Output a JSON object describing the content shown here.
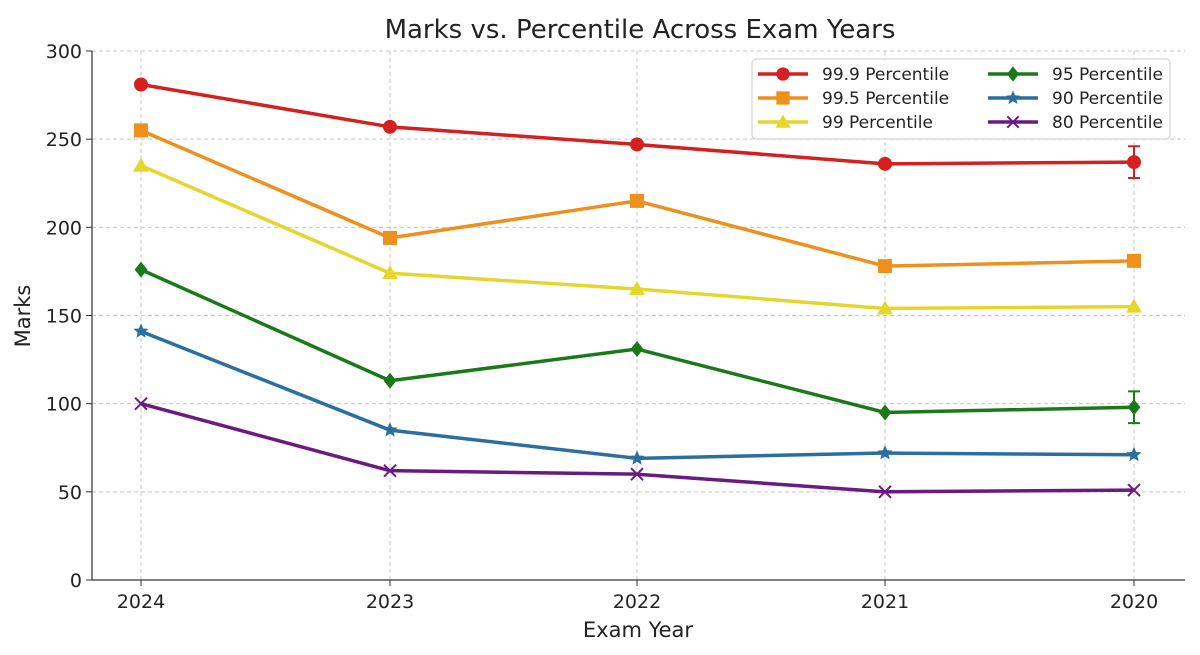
{
  "chart_data": {
    "type": "line",
    "title": "Marks vs. Percentile Across Exam Years",
    "xlabel": "Exam Year",
    "ylabel": "Marks",
    "categories": [
      "2024",
      "2023",
      "2022",
      "2021",
      "2020"
    ],
    "ylim": [
      0,
      300
    ],
    "yticks": [
      0,
      50,
      100,
      150,
      200,
      250,
      300
    ],
    "grid": true,
    "legend": "top-right",
    "series": [
      {
        "name": "99.9 Percentile",
        "color": "#d62020",
        "marker": "circle",
        "values": [
          281,
          257,
          247,
          236,
          237
        ],
        "error_2020": 9
      },
      {
        "name": "99.5 Percentile",
        "color": "#f0901c",
        "marker": "square",
        "values": [
          255,
          194,
          215,
          178,
          181
        ]
      },
      {
        "name": "99 Percentile",
        "color": "#e6d62c",
        "marker": "triangle",
        "values": [
          235,
          174,
          165,
          154,
          155
        ]
      },
      {
        "name": "95 Percentile",
        "color": "#1a7a1a",
        "marker": "diamond",
        "values": [
          176,
          113,
          131,
          95,
          98
        ],
        "error_2020": 9
      },
      {
        "name": "90 Percentile",
        "color": "#2b6ea0",
        "marker": "star",
        "values": [
          141,
          85,
          69,
          72,
          71
        ]
      },
      {
        "name": "80 Percentile",
        "color": "#6a1a80",
        "marker": "x",
        "values": [
          100,
          62,
          60,
          50,
          51
        ]
      }
    ]
  }
}
